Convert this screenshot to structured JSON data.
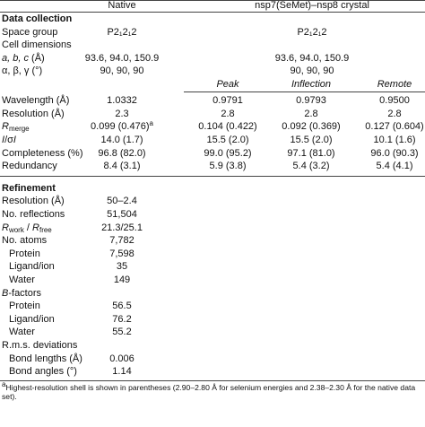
{
  "header": {
    "columns": [
      "Native",
      "nsp7(SeMet)–nsp8 crystal"
    ]
  },
  "sections": [
    {
      "title": "Data collection",
      "rows": [
        {
          "label": "Space group",
          "native": "P2₁2₁2",
          "crystal": "P2₁2₁2"
        },
        {
          "label": "Cell dimensions"
        },
        {
          "label": [
            {
              "text": "a, b, c",
              "style": "italic"
            },
            {
              "text": " (Å)"
            }
          ],
          "native": "93.6, 94.0, 150.9",
          "crystal": "93.6, 94.0, 150.9"
        },
        {
          "label": "α, β, γ (°)",
          "native": "90, 90, 90",
          "crystal": "90, 90, 90"
        },
        {
          "crystal": [
            "Peak",
            "Inflection",
            "Remote"
          ]
        },
        {
          "label": "Wavelength (Å)",
          "native": "1.0332",
          "crystal": [
            "0.9791",
            "0.9793",
            "0.9500"
          ]
        },
        {
          "label": "Resolution (Å)",
          "native": "2.3",
          "crystal": [
            "2.8",
            "2.8",
            "2.8"
          ]
        },
        {
          "label": [
            {
              "text": "R",
              "style": "italic"
            },
            {
              "text": "merge",
              "style": "sub"
            }
          ],
          "native": [
            {
              "text": "0.099 (0.476)"
            },
            {
              "text": "a",
              "style": "sup"
            }
          ],
          "crystal": [
            "0.104 (0.422)",
            "0.092 (0.369)",
            "0.127 (0.604)"
          ]
        },
        {
          "label": [
            {
              "text": "I",
              "style": "italic"
            },
            {
              "text": "/σ"
            },
            {
              "text": "I",
              "style": "italic"
            }
          ],
          "native": "14.0 (1.7)",
          "crystal": [
            "15.5 (2.0)",
            "15.5 (2.0)",
            "10.1 (1.6)"
          ]
        },
        {
          "label": "Completeness (%)",
          "native": "96.8 (82.0)",
          "crystal": [
            "99.0 (95.2)",
            "97.1 (81.0)",
            "96.0 (90.3)"
          ]
        },
        {
          "label": "Redundancy",
          "native": "8.4 (3.1)",
          "crystal": [
            "5.9 (3.8)",
            "5.4 (3.2)",
            "5.4 (4.1)"
          ]
        }
      ]
    },
    {
      "title": "Refinement",
      "rows": [
        {
          "label": "Resolution (Å)",
          "native": "50–2.4"
        },
        {
          "label": "No. reflections",
          "native": "51,504"
        },
        {
          "label": [
            {
              "text": "R",
              "style": "italic"
            },
            {
              "text": "work",
              "style": "sub"
            },
            {
              "text": " / "
            },
            {
              "text": "R",
              "style": "italic"
            },
            {
              "text": "free",
              "style": "sub"
            }
          ],
          "native": "21.3/25.1"
        },
        {
          "label": "No. atoms",
          "native": "7,782"
        },
        {
          "label": "Protein",
          "indent": true,
          "native": "7,598"
        },
        {
          "label": "Ligand/ion",
          "indent": true,
          "native": "35"
        },
        {
          "label": "Water",
          "indent": true,
          "native": "149"
        },
        {
          "label": [
            {
              "text": "B",
              "style": "italic"
            },
            {
              "text": "-factors"
            }
          ]
        },
        {
          "label": "Protein",
          "indent": true,
          "native": "56.5"
        },
        {
          "label": "Ligand/ion",
          "indent": true,
          "native": "76.2"
        },
        {
          "label": "Water",
          "indent": true,
          "native": "55.2"
        },
        {
          "label": "R.m.s. deviations"
        },
        {
          "label": "Bond lengths (Å)",
          "indent": true,
          "native": "0.006"
        },
        {
          "label": "Bond angles (°)",
          "indent": true,
          "native": "1.14"
        }
      ]
    }
  ],
  "footnote": [
    {
      "text": "a",
      "style": "sup"
    },
    {
      "text": "Highest-resolution shell is shown in parentheses (2.90–2.80 Å for selenium energies and 2.38–2.30 Å for the native data set)."
    }
  ]
}
